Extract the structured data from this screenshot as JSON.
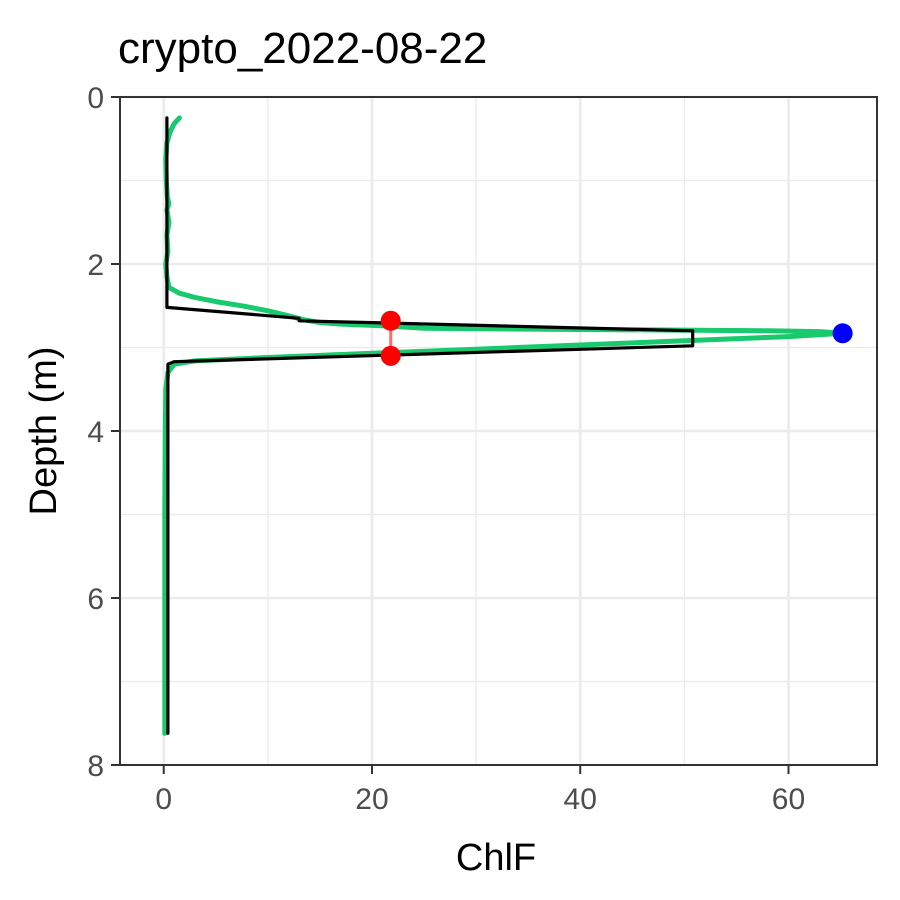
{
  "chart_data": {
    "type": "line",
    "title": "crypto_2022-08-22",
    "xlabel": "ChlF",
    "ylabel": "Depth (m)",
    "xlim": [
      -4.2,
      68.5
    ],
    "ylim": [
      8,
      0
    ],
    "y_reversed": true,
    "x_ticks": [
      0,
      20,
      40,
      60
    ],
    "x_tick_labels": [
      "0",
      "20",
      "40",
      "60"
    ],
    "y_ticks": [
      0,
      2,
      4,
      6,
      8
    ],
    "y_tick_labels": [
      "0",
      "2",
      "4",
      "6",
      "8"
    ],
    "grid": true,
    "legend": "none",
    "colors": {
      "measured": "#18c96e",
      "fitted": "#000000",
      "bounds": "#ff0000",
      "bounds_link": "#ff6b6b",
      "peak": "#0000ff"
    },
    "series": [
      {
        "kind": "line",
        "color": "#18c96e",
        "points": [
          [
            1.5,
            0.25
          ],
          [
            1.0,
            0.32
          ],
          [
            0.6,
            0.42
          ],
          [
            0.3,
            0.55
          ],
          [
            0.2,
            0.75
          ],
          [
            0.25,
            1.0
          ],
          [
            0.35,
            1.2
          ],
          [
            0.5,
            1.28
          ],
          [
            0.3,
            1.35
          ],
          [
            0.5,
            1.5
          ],
          [
            0.3,
            1.65
          ],
          [
            0.4,
            1.85
          ],
          [
            0.2,
            2.0
          ],
          [
            0.3,
            2.15
          ],
          [
            0.5,
            2.28
          ],
          [
            1.5,
            2.35
          ],
          [
            3.0,
            2.4
          ],
          [
            5.0,
            2.45
          ],
          [
            7.5,
            2.5
          ],
          [
            10.0,
            2.56
          ],
          [
            12.0,
            2.62
          ],
          [
            13.5,
            2.67
          ],
          [
            15.0,
            2.7
          ],
          [
            17.0,
            2.72
          ],
          [
            21.0,
            2.74
          ],
          [
            25.0,
            2.77
          ],
          [
            35.0,
            2.78
          ],
          [
            48.0,
            2.79
          ],
          [
            58.0,
            2.8
          ],
          [
            63.0,
            2.81
          ],
          [
            65.2,
            2.83
          ],
          [
            60.0,
            2.87
          ],
          [
            50.0,
            2.92
          ],
          [
            40.0,
            2.97
          ],
          [
            30.0,
            3.02
          ],
          [
            20.0,
            3.07
          ],
          [
            10.0,
            3.12
          ],
          [
            3.0,
            3.16
          ],
          [
            1.0,
            3.2
          ],
          [
            0.4,
            3.3
          ],
          [
            0.2,
            3.5
          ],
          [
            0.15,
            4.0
          ],
          [
            0.1,
            5.0
          ],
          [
            0.1,
            6.0
          ],
          [
            0.1,
            7.0
          ],
          [
            0.1,
            7.62
          ]
        ]
      },
      {
        "kind": "line",
        "color": "#000000",
        "points": [
          [
            0.3,
            0.25
          ],
          [
            0.3,
            2.52
          ],
          [
            13.0,
            2.65
          ],
          [
            13.0,
            2.68
          ],
          [
            50.8,
            2.8
          ],
          [
            50.8,
            2.98
          ],
          [
            1.0,
            3.17
          ],
          [
            0.4,
            3.2
          ],
          [
            0.4,
            7.62
          ]
        ]
      }
    ],
    "bounds": [
      {
        "x": 21.8,
        "y": 2.68
      },
      {
        "x": 21.8,
        "y": 3.1
      }
    ],
    "peak": {
      "x": 65.2,
      "y": 2.83
    }
  }
}
